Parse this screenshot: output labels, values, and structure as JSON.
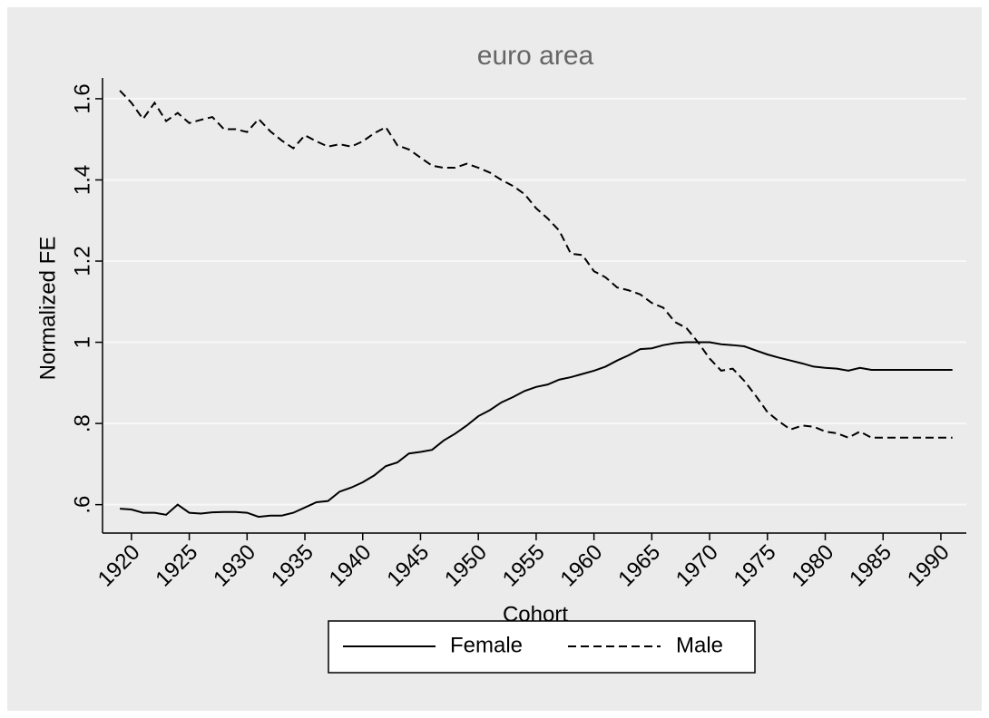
{
  "chart_data": {
    "type": "line",
    "title": "euro area",
    "x_label": "Cohort",
    "y_label": "Normalized FE",
    "x": [
      1919,
      1920,
      1921,
      1922,
      1923,
      1924,
      1925,
      1926,
      1927,
      1928,
      1929,
      1930,
      1931,
      1932,
      1933,
      1934,
      1935,
      1936,
      1937,
      1938,
      1939,
      1940,
      1941,
      1942,
      1943,
      1944,
      1945,
      1946,
      1947,
      1948,
      1949,
      1950,
      1951,
      1952,
      1953,
      1954,
      1955,
      1956,
      1957,
      1958,
      1959,
      1960,
      1961,
      1962,
      1963,
      1964,
      1965,
      1966,
      1967,
      1968,
      1969,
      1970,
      1971,
      1972,
      1973,
      1974,
      1975,
      1976,
      1977,
      1978,
      1979,
      1980,
      1981,
      1982,
      1983,
      1984,
      1985,
      1986,
      1987,
      1988,
      1989,
      1990,
      1991
    ],
    "series": [
      {
        "name": "Female",
        "color": "#000000",
        "dash": "solid",
        "values": [
          0.59,
          0.588,
          0.58,
          0.58,
          0.575,
          0.6,
          0.58,
          0.578,
          0.581,
          0.582,
          0.582,
          0.58,
          0.57,
          0.573,
          0.573,
          0.58,
          0.593,
          0.606,
          0.609,
          0.632,
          0.642,
          0.655,
          0.672,
          0.695,
          0.704,
          0.726,
          0.73,
          0.735,
          0.758,
          0.775,
          0.795,
          0.818,
          0.833,
          0.852,
          0.865,
          0.88,
          0.89,
          0.896,
          0.908,
          0.914,
          0.922,
          0.93,
          0.94,
          0.955,
          0.968,
          0.983,
          0.985,
          0.993,
          0.998,
          1.0,
          1.0,
          1.0,
          0.995,
          0.993,
          0.99,
          0.98,
          0.97,
          0.962,
          0.955,
          0.948,
          0.94,
          0.937,
          0.935,
          0.93,
          0.937,
          0.932,
          0.932,
          0.932,
          0.932,
          0.932,
          0.932,
          0.932,
          0.932
        ]
      },
      {
        "name": "Male",
        "color": "#000000",
        "dash": "dashed",
        "values": [
          1.62,
          1.59,
          1.55,
          1.59,
          1.545,
          1.565,
          1.54,
          1.548,
          1.555,
          1.525,
          1.525,
          1.518,
          1.55,
          1.52,
          1.497,
          1.478,
          1.51,
          1.495,
          1.482,
          1.488,
          1.482,
          1.495,
          1.515,
          1.53,
          1.485,
          1.475,
          1.455,
          1.435,
          1.43,
          1.43,
          1.44,
          1.43,
          1.418,
          1.4,
          1.385,
          1.365,
          1.33,
          1.305,
          1.275,
          1.218,
          1.215,
          1.175,
          1.16,
          1.135,
          1.128,
          1.118,
          1.097,
          1.085,
          1.05,
          1.035,
          1.0,
          0.96,
          0.93,
          0.935,
          0.905,
          0.868,
          0.828,
          0.805,
          0.785,
          0.795,
          0.792,
          0.78,
          0.776,
          0.765,
          0.78,
          0.765,
          0.765,
          0.765,
          0.765,
          0.765,
          0.765,
          0.765,
          0.765
        ]
      }
    ],
    "xlim": [
      1917.5,
      1992.2
    ],
    "ylim": [
      0.53,
      1.64
    ],
    "xticks": [
      1920,
      1925,
      1930,
      1935,
      1940,
      1945,
      1950,
      1955,
      1960,
      1965,
      1970,
      1975,
      1980,
      1985,
      1990
    ],
    "yticks": [
      {
        "value": 0.6,
        "label": ".6"
      },
      {
        "value": 0.8,
        "label": ".8"
      },
      1,
      1.2,
      1.4,
      1.6
    ],
    "grid": true,
    "legend_position": "bottom"
  }
}
